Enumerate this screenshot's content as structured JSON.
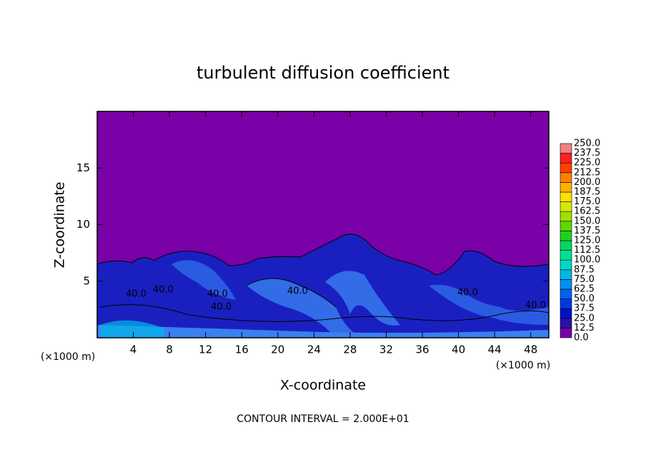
{
  "chart_data": {
    "type": "contour",
    "title": "turbulent diffusion coefficient",
    "x_label": "X-coordinate",
    "y_label": "Z-coordinate",
    "x_unit": "(×1000 m)",
    "y_unit": "(×1000 m)",
    "footnote": "CONTOUR INTERVAL = 2.000E+01",
    "contour_labels": [
      "40.0",
      "40.0",
      "40.0",
      "40.0",
      "40.0",
      "40.0",
      "40.0"
    ],
    "xlim": [
      0,
      50
    ],
    "xticks": [
      4,
      8,
      12,
      16,
      20,
      24,
      28,
      32,
      36,
      40,
      44,
      48
    ],
    "ylim": [
      0,
      20
    ],
    "yticks": [
      5,
      10,
      15
    ],
    "levels": [
      {
        "value": 0,
        "label": "0.0"
      },
      {
        "value": 12.5,
        "label": "12.5"
      },
      {
        "value": 25,
        "label": "25.0"
      },
      {
        "value": 37.5,
        "label": "37.5"
      },
      {
        "value": 50,
        "label": "50.0"
      },
      {
        "value": 62.5,
        "label": "62.5"
      },
      {
        "value": 75,
        "label": "75.0"
      },
      {
        "value": 87.5,
        "label": "87.5"
      },
      {
        "value": 100,
        "label": "100.0"
      },
      {
        "value": 112.5,
        "label": "112.5"
      },
      {
        "value": 125,
        "label": "125.0"
      },
      {
        "value": 137.5,
        "label": "137.5"
      },
      {
        "value": 150,
        "label": "150.0"
      },
      {
        "value": 162.5,
        "label": "162.5"
      },
      {
        "value": 175,
        "label": "175.0"
      },
      {
        "value": 187.5,
        "label": "187.5"
      },
      {
        "value": 200,
        "label": "200.0"
      },
      {
        "value": 212.5,
        "label": "212.5"
      },
      {
        "value": 225,
        "label": "225.0"
      },
      {
        "value": 237.5,
        "label": "237.5"
      },
      {
        "value": 250,
        "label": "250.0"
      }
    ],
    "colors": [
      "#7a00a8",
      "#2a10a8",
      "#0010c8",
      "#0038e0",
      "#0064f0",
      "#0090f0",
      "#00b8e8",
      "#00d8c8",
      "#00e090",
      "#00d860",
      "#20d020",
      "#60d800",
      "#a0e000",
      "#d8e800",
      "#ffe000",
      "#ffb000",
      "#ff8000",
      "#ff4000",
      "#ff2020",
      "#f08080"
    ]
  }
}
